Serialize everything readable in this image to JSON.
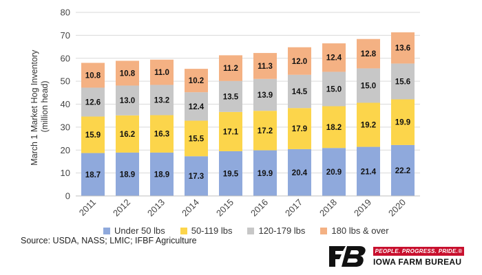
{
  "chart_data": {
    "type": "bar",
    "stacked": true,
    "title": "",
    "xlabel": "",
    "ylabel": "March 1 Market Hog Inventory (million head)",
    "ylabel_lines": [
      "March 1 Market Hog Inventory",
      "(million head)"
    ],
    "ylim": [
      0,
      80
    ],
    "yticks": [
      0,
      10,
      20,
      30,
      40,
      50,
      60,
      70,
      80
    ],
    "ytick_labels": [
      "0",
      "10",
      "20",
      "30",
      "40",
      "50",
      "60",
      "70",
      "80"
    ],
    "grid": true,
    "legend_position": "bottom",
    "categories": [
      "2011",
      "2012",
      "2013",
      "2014",
      "2015",
      "2016",
      "2017",
      "2018",
      "2019",
      "2020"
    ],
    "series": [
      {
        "name": "Under 50 lbs",
        "color": "#8fa9dc",
        "values": [
          18.7,
          18.9,
          18.9,
          17.3,
          19.5,
          19.9,
          20.4,
          20.9,
          21.4,
          22.2
        ],
        "labels": [
          "18.7",
          "18.9",
          "18.9",
          "17.3",
          "19.5",
          "19.9",
          "20.4",
          "20.9",
          "21.4",
          "22.2"
        ]
      },
      {
        "name": "50-119 lbs",
        "color": "#fcd54b",
        "values": [
          15.9,
          16.2,
          16.3,
          15.5,
          17.1,
          17.2,
          17.9,
          18.2,
          19.2,
          19.9
        ],
        "labels": [
          "15.9",
          "16.2",
          "16.3",
          "15.5",
          "17.1",
          "17.2",
          "17.9",
          "18.2",
          "19.2",
          "19.9"
        ]
      },
      {
        "name": "120-179 lbs",
        "color": "#c7c7c7",
        "values": [
          12.6,
          13.0,
          13.2,
          12.4,
          13.5,
          13.9,
          14.5,
          15.0,
          15.0,
          15.6
        ],
        "labels": [
          "12.6",
          "13.0",
          "13.2",
          "12.4",
          "13.5",
          "13.9",
          "14.5",
          "15.0",
          "15.0",
          "15.6"
        ]
      },
      {
        "name": "180 lbs & over",
        "color": "#f4b183",
        "values": [
          10.8,
          10.8,
          11.0,
          10.2,
          11.2,
          11.3,
          12.0,
          12.4,
          12.8,
          13.6
        ],
        "labels": [
          "10.8",
          "10.8",
          "11.0",
          "10.2",
          "11.2",
          "11.3",
          "12.0",
          "12.4",
          "12.8",
          "13.6"
        ]
      }
    ]
  },
  "source": "Source: USDA, NASS; LMIC; IFBF Agriculture",
  "branding": {
    "logo_text": "FB",
    "tagline": "PEOPLE. PROGRESS. PRIDE.®",
    "org_name": "IOWA FARM BUREAU",
    "accent_color": "#c8102e"
  }
}
